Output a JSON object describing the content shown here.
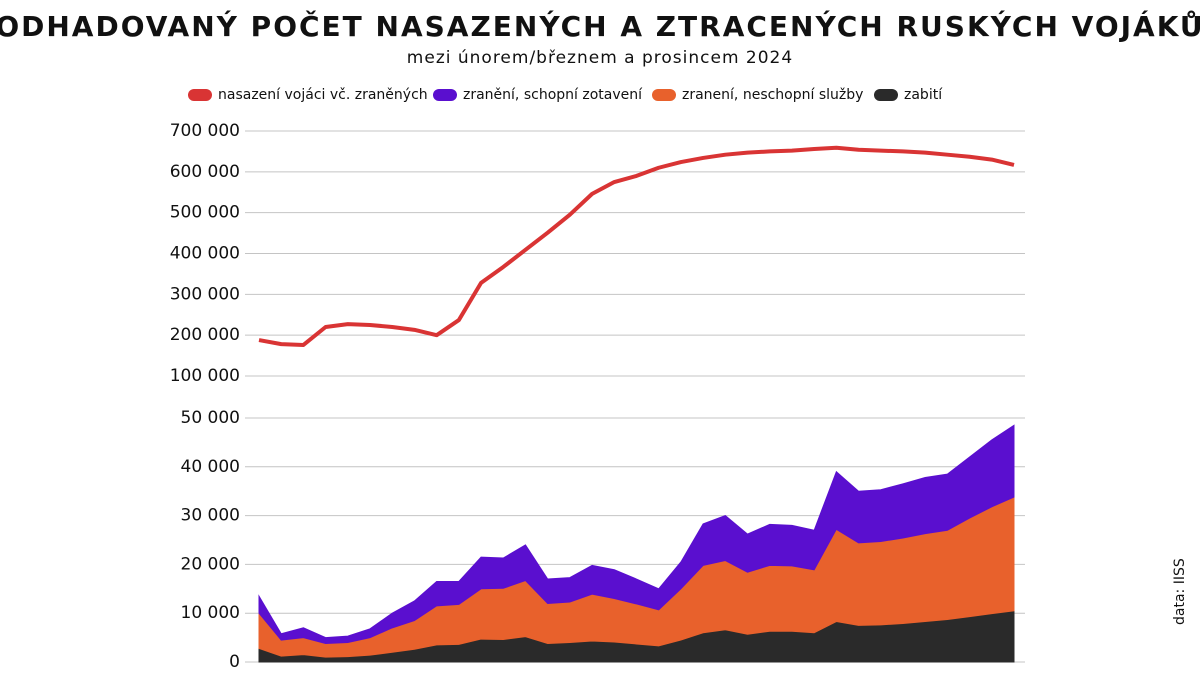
{
  "title": "ODHADOVANÝ POČET NASAZENÝCH A ZTRACENÝCH RUSKÝCH VOJÁKŮ",
  "subtitle": "mezi únorem/březnem a prosincem 2024",
  "source": "data: IISS",
  "chart_data": [
    {
      "type": "line",
      "categories": [
        null,
        null,
        null,
        null,
        null,
        null,
        null,
        null,
        null,
        null,
        null,
        null,
        null,
        null,
        null,
        null,
        null,
        null,
        null,
        null,
        null,
        null,
        null,
        null,
        null,
        null,
        null,
        null,
        null,
        null,
        null,
        null,
        null,
        null,
        null
      ],
      "series": [
        {
          "name": "nasazení vojáci vč. zraněných",
          "color": "#d93434",
          "values": [
            188000,
            178000,
            176000,
            220000,
            227000,
            225000,
            220000,
            213000,
            200000,
            237000,
            328000,
            367000,
            409000,
            451000,
            495000,
            546000,
            575000,
            590000,
            610000,
            624000,
            634000,
            642000,
            647000,
            650000,
            652000,
            656000,
            659000,
            654000,
            652000,
            650000,
            647000,
            642000,
            637000,
            630000,
            617000
          ]
        }
      ],
      "ylim": [
        100000,
        700000
      ],
      "yticks": [
        {
          "value": 100000,
          "label": "100 000"
        },
        {
          "value": 200000,
          "label": "200 000"
        },
        {
          "value": 300000,
          "label": "300 000"
        },
        {
          "value": 400000,
          "label": "400 000"
        },
        {
          "value": 500000,
          "label": "500 000"
        },
        {
          "value": 600000,
          "label": "600 000"
        },
        {
          "value": 700000,
          "label": "700 000"
        }
      ],
      "grid": true
    },
    {
      "type": "stacked_area",
      "categories": [
        null,
        null,
        null,
        null,
        null,
        null,
        null,
        null,
        null,
        null,
        null,
        null,
        null,
        null,
        null,
        null,
        null,
        null,
        null,
        null,
        null,
        null,
        null,
        null,
        null,
        null,
        null,
        null,
        null,
        null,
        null,
        null,
        null,
        null,
        null
      ],
      "series": [
        {
          "name": "zabití",
          "color": "#2a2a2a",
          "values": [
            2800,
            1200,
            1500,
            1000,
            1100,
            1400,
            2000,
            2600,
            3500,
            3600,
            4700,
            4600,
            5200,
            3800,
            4000,
            4300,
            4100,
            3700,
            3300,
            4500,
            6000,
            6600,
            5700,
            6300,
            6300,
            6000,
            8300,
            7500,
            7600,
            7900,
            8300,
            8700,
            9300,
            9900,
            10500
          ]
        },
        {
          "name": "zranení, neschopní služby",
          "color": "#e8612c",
          "values": [
            7200,
            3300,
            3500,
            2800,
            2900,
            3600,
            5000,
            5900,
            8000,
            8200,
            10300,
            10500,
            11500,
            8200,
            8300,
            9600,
            8900,
            8200,
            7400,
            10500,
            13800,
            14200,
            12700,
            13500,
            13400,
            12900,
            18900,
            16900,
            17100,
            17500,
            18000,
            18300,
            20200,
            21900,
            23300
          ]
        },
        {
          "name": "zranění, schopní zotavení",
          "color": "#5a0fcf",
          "values": [
            3500,
            1300,
            2000,
            1200,
            1300,
            1800,
            3000,
            4000,
            5000,
            4700,
            6500,
            6200,
            7300,
            5000,
            5000,
            5900,
            5900,
            5100,
            4300,
            5500,
            8500,
            9200,
            7800,
            8400,
            8300,
            8100,
            11800,
            10600,
            10600,
            11100,
            11500,
            11500,
            12500,
            13700,
            14700
          ]
        }
      ],
      "ylim": [
        0,
        50000
      ],
      "yticks": [
        0,
        {
          "value": 10000,
          "label": "10 000"
        },
        {
          "value": 20000,
          "label": "20 000"
        },
        {
          "value": 30000,
          "label": "30 000"
        },
        {
          "value": 40000,
          "label": "40 000"
        },
        {
          "value": 50000,
          "label": "50 000"
        }
      ],
      "grid": true
    }
  ]
}
